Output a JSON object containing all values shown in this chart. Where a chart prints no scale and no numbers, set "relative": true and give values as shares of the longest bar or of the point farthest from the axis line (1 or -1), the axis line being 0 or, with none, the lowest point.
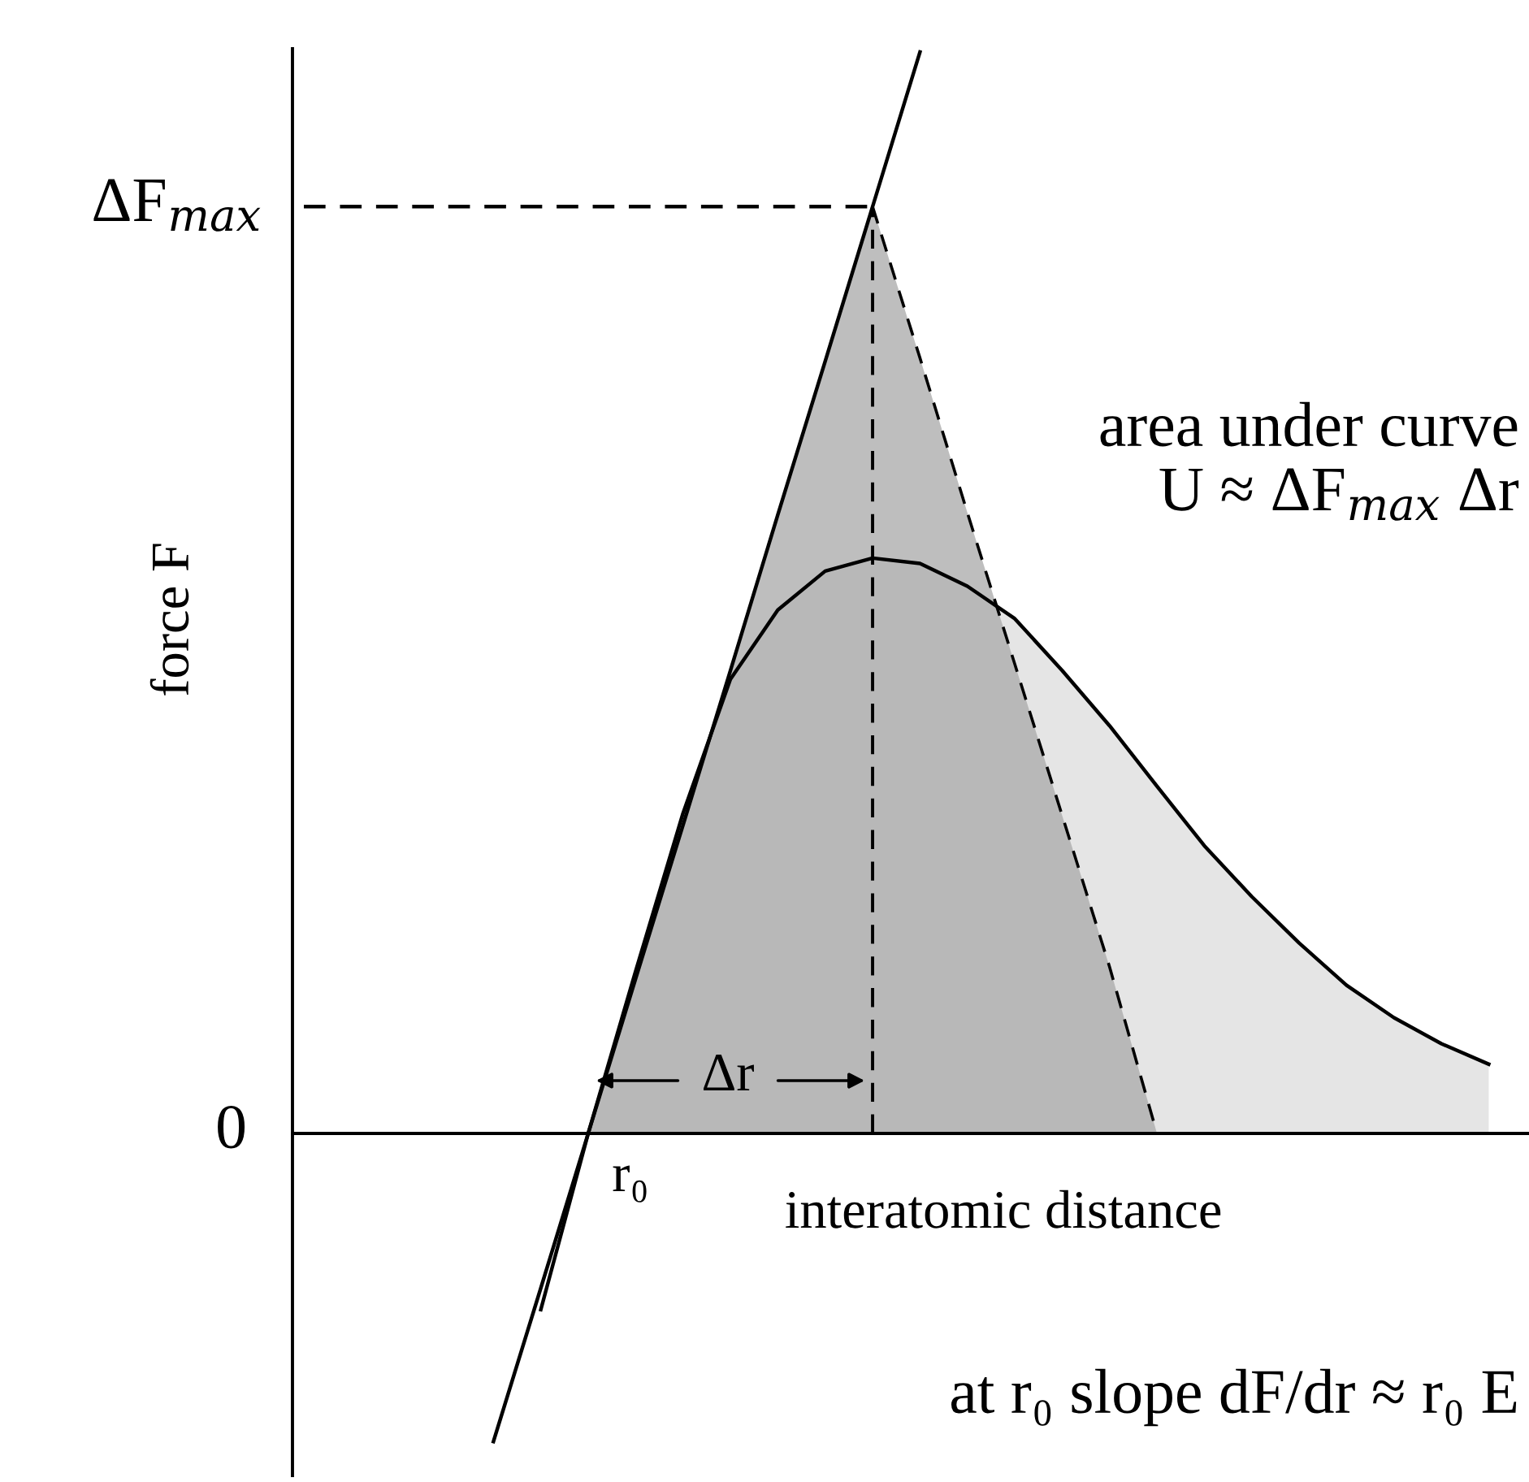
{
  "chart_data": {
    "type": "line",
    "ylabel": "force F",
    "xlabel": "interatomic distance",
    "relative": true,
    "grid": false,
    "categories": [
      null,
      null,
      null,
      null,
      null,
      null,
      null,
      null,
      null,
      null,
      null,
      null,
      null,
      null,
      null,
      null,
      null,
      null,
      null,
      null,
      null,
      null,
      null,
      null,
      null,
      null
    ],
    "series": [
      {
        "type": "area",
        "color": "#dcdcdc",
        "values": [
          null,
          null,
          null,
          null,
          null,
          null,
          0,
          0.15,
          0.296,
          0.42,
          0.484,
          0.52,
          0.532,
          0.527,
          0.506,
          0.476,
          0.428,
          0.377,
          0.321,
          0.266,
          0.219,
          0.176,
          0.137,
          0.107,
          0.083,
          0.064
        ]
      },
      {
        "type": "area",
        "color": "#a8a8a8",
        "line_style": "dashed",
        "values": [
          null,
          null,
          null,
          null,
          null,
          null,
          0,
          0.143,
          0.285,
          0.428,
          0.572,
          0.714,
          0.857,
          0.717,
          0.574,
          0.434,
          0.294,
          0.154,
          0,
          null,
          null,
          null,
          null,
          null,
          null,
          null
        ]
      },
      {
        "color": "#000000",
        "values": [
          null,
          null,
          null,
          null,
          null,
          -0.163,
          0,
          0.15,
          0.296,
          0.42,
          0.484,
          0.52,
          0.532,
          0.527,
          0.506,
          0.476,
          0.428,
          0.377,
          0.321,
          0.266,
          0.219,
          0.176,
          0.137,
          0.107,
          0.083,
          0.064
        ]
      },
      {
        "color": "#000000",
        "values": [
          null,
          null,
          null,
          null,
          -0.285,
          -0.143,
          0,
          0.143,
          0.285,
          0.428,
          0.572,
          0.714,
          0.857,
          1,
          null,
          null,
          null,
          null,
          null,
          null,
          null,
          null,
          null,
          null,
          null,
          null
        ]
      },
      {
        "color": "#000000",
        "line_style": "dashed",
        "values": [
          0.857,
          0.857,
          0.857,
          0.857,
          0.857,
          0.857,
          0.857,
          0.857,
          0.857,
          0.857,
          0.857,
          0.857,
          0.857,
          null,
          null,
          null,
          null,
          null,
          null,
          null,
          null,
          null,
          null,
          null,
          null,
          null
        ]
      }
    ],
    "annotations": [
      "area under curve",
      "U ≈ ΔF$_{max}$ Δr",
      "Δr",
      "at r₀ slope dF/dr ≈ r₀ E",
      "r₀",
      "0",
      "ΔF$_{max}$"
    ]
  }
}
